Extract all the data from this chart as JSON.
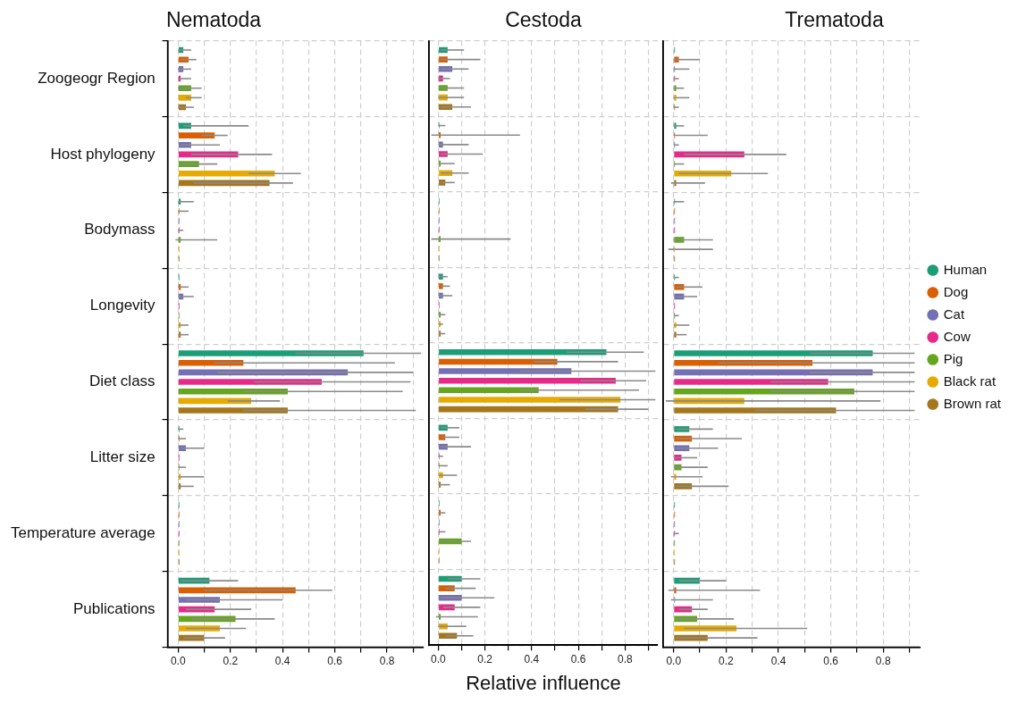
{
  "chart_data": [
    {
      "type": "bar",
      "orientation": "horizontal",
      "title": "Nematoda",
      "categories": [
        "Zoogeogr Region",
        "Host phylogeny",
        "Bodymass",
        "Longevity",
        "Diet class",
        "Litter size",
        "Temperature average",
        "Publications"
      ],
      "xlim": [
        -0.04,
        0.94
      ],
      "xticks": [
        {
          "value": 0,
          "label": "0.0"
        },
        {
          "value": 0.1,
          "label": null
        },
        0.2,
        {
          "value": 0.3,
          "label": null
        },
        0.4,
        {
          "value": 0.5,
          "label": null
        },
        0.6,
        {
          "value": 0.7,
          "label": null
        },
        0.8,
        {
          "value": 0.9,
          "label": null
        }
      ],
      "grid": true,
      "legend": false,
      "series": [
        {
          "color": "#1b9e77",
          "values": [
            0.02,
            0.05,
            0.01,
            0.005,
            0.71,
            0.005,
            0.005,
            0.12
          ],
          "errors": [
            [
              0,
              0.05
            ],
            [
              0.02,
              0.27
            ],
            [
              0,
              0.06
            ],
            null,
            [
              0.45,
              0.93
            ],
            [
              0,
              0.02
            ],
            null,
            [
              0.01,
              0.23
            ]
          ]
        },
        {
          "color": "#d95f02",
          "values": [
            0.04,
            0.14,
            0.005,
            0.01,
            0.25,
            0.005,
            0.005,
            0.45
          ],
          "errors": [
            [
              0.01,
              0.07
            ],
            [
              0.09,
              0.19
            ],
            [
              0,
              0.04
            ],
            [
              0,
              0.04
            ],
            [
              0.14,
              0.83
            ],
            [
              0,
              0.03
            ],
            null,
            [
              0.1,
              0.59
            ]
          ]
        },
        {
          "color": "#7570b3",
          "values": [
            0.02,
            0.05,
            0.005,
            0.02,
            0.65,
            0.03,
            0.005,
            0.16
          ],
          "errors": [
            [
              0,
              0.05
            ],
            [
              0.01,
              0.16
            ],
            null,
            [
              0,
              0.06
            ],
            [
              0.15,
              0.9
            ],
            [
              0.01,
              0.1
            ],
            null,
            [
              0.03,
              0.4
            ]
          ]
        },
        {
          "color": "#e7298a",
          "values": [
            0.01,
            0.23,
            0.005,
            0.005,
            0.55,
            0.005,
            0.005,
            0.14
          ],
          "errors": [
            [
              0,
              0.05
            ],
            [
              0.05,
              0.36
            ],
            [
              0,
              0.02
            ],
            null,
            [
              0.29,
              0.89
            ],
            null,
            null,
            [
              0.03,
              0.28
            ]
          ]
        },
        {
          "color": "#66a61e",
          "values": [
            0.05,
            0.08,
            0.01,
            0.005,
            0.42,
            0.005,
            0.005,
            0.22
          ],
          "errors": [
            [
              0,
              0.09
            ],
            [
              0.01,
              0.15
            ],
            [
              -0.01,
              0.15
            ],
            null,
            [
              0.25,
              0.86
            ],
            [
              0,
              0.03
            ],
            null,
            [
              0.05,
              0.37
            ]
          ]
        },
        {
          "color": "#e6ab02",
          "values": [
            0.05,
            0.37,
            0.005,
            0.01,
            0.28,
            0.01,
            0.005,
            0.16
          ],
          "errors": [
            [
              0.03,
              0.09
            ],
            [
              0.27,
              0.47
            ],
            null,
            [
              0,
              0.04
            ],
            [
              0.19,
              0.39
            ],
            [
              0,
              0.1
            ],
            null,
            [
              0.03,
              0.26
            ]
          ]
        },
        {
          "color": "#a6761d",
          "values": [
            0.03,
            0.35,
            0.005,
            0.01,
            0.42,
            0.01,
            0.005,
            0.1
          ],
          "errors": [
            [
              0,
              0.06
            ],
            [
              0.06,
              0.44
            ],
            null,
            [
              0,
              0.04
            ],
            [
              0.25,
              0.91
            ],
            [
              0,
              0.06
            ],
            null,
            [
              0.02,
              0.18
            ]
          ]
        }
      ]
    },
    {
      "type": "bar",
      "orientation": "horizontal",
      "title": "Cestoda",
      "xlabel": "Relative influence",
      "tick_labels": "x",
      "categories": [
        null,
        null,
        null,
        null,
        null,
        null,
        null,
        null
      ],
      "xlim": [
        -0.04,
        0.94
      ],
      "xticks": [
        {
          "value": 0,
          "label": "0.0"
        },
        {
          "value": 0.1,
          "label": null
        },
        0.2,
        {
          "value": 0.3,
          "label": null
        },
        0.4,
        {
          "value": 0.5,
          "label": null
        },
        0.6,
        {
          "value": 0.7,
          "label": null
        },
        0.8,
        {
          "value": 0.9,
          "label": null
        }
      ],
      "grid": true,
      "legend": false,
      "series": [
        {
          "color": "#1b9e77",
          "values": [
            0.04,
            0.005,
            0.005,
            0.02,
            0.72,
            0.04,
            0.005,
            0.1
          ],
          "errors": [
            [
              0.01,
              0.11
            ],
            [
              0,
              0.03
            ],
            null,
            [
              0,
              0.04
            ],
            [
              0.55,
              0.88
            ],
            [
              0.01,
              0.09
            ],
            null,
            [
              0.04,
              0.18
            ]
          ]
        },
        {
          "color": "#d95f02",
          "values": [
            0.04,
            0.01,
            0.005,
            0.02,
            0.51,
            0.03,
            0.01,
            0.07
          ],
          "errors": [
            [
              0.01,
              0.18
            ],
            [
              -0.03,
              0.35
            ],
            null,
            [
              0.01,
              0.05
            ],
            [
              0.41,
              0.77
            ],
            [
              0.01,
              0.09
            ],
            [
              0,
              0.03
            ],
            [
              0.03,
              0.16
            ]
          ]
        },
        {
          "color": "#7570b3",
          "values": [
            0.06,
            0.02,
            0.005,
            0.02,
            0.57,
            0.04,
            0.005,
            0.1
          ],
          "errors": [
            [
              0.01,
              0.13
            ],
            [
              0,
              0.13
            ],
            null,
            [
              0,
              0.06
            ],
            [
              0.35,
              0.93
            ],
            [
              0.01,
              0.14
            ],
            null,
            [
              0.01,
              0.24
            ]
          ]
        },
        {
          "color": "#e7298a",
          "values": [
            0.02,
            0.04,
            0.005,
            0.005,
            0.76,
            0.005,
            0.005,
            0.07
          ],
          "errors": [
            [
              0,
              0.05
            ],
            [
              0.01,
              0.19
            ],
            null,
            null,
            [
              0.61,
              0.89
            ],
            [
              0,
              0.02
            ],
            [
              0,
              0.03
            ],
            [
              0.02,
              0.18
            ]
          ]
        },
        {
          "color": "#66a61e",
          "values": [
            0.04,
            0.01,
            0.01,
            0.01,
            0.43,
            0.005,
            0.1,
            0.01
          ],
          "errors": [
            [
              0.01,
              0.11
            ],
            [
              0,
              0.07
            ],
            [
              -0.03,
              0.31
            ],
            [
              0,
              0.03
            ],
            [
              0.35,
              0.86
            ],
            [
              0,
              0.04
            ],
            [
              0.01,
              0.14
            ],
            [
              -0.01,
              0.17
            ]
          ]
        },
        {
          "color": "#e6ab02",
          "values": [
            0.04,
            0.06,
            0.005,
            0.01,
            0.78,
            0.02,
            0.005,
            0.04
          ],
          "errors": [
            [
              0,
              0.11
            ],
            [
              0.01,
              0.13
            ],
            null,
            [
              0,
              0.02
            ],
            [
              0.52,
              0.93
            ],
            [
              0,
              0.08
            ],
            null,
            [
              0,
              0.12
            ]
          ]
        },
        {
          "color": "#a6761d",
          "values": [
            0.06,
            0.03,
            0.005,
            0.01,
            0.77,
            0.01,
            0.005,
            0.08
          ],
          "errors": [
            [
              0.01,
              0.14
            ],
            [
              0.01,
              0.07
            ],
            null,
            [
              0,
              0.03
            ],
            [
              0.63,
              0.9
            ],
            [
              0,
              0.05
            ],
            null,
            [
              0.03,
              0.15
            ]
          ]
        }
      ]
    },
    {
      "type": "bar",
      "orientation": "horizontal",
      "title": "Trematoda",
      "tick_labels": "x",
      "categories": [
        null,
        null,
        null,
        null,
        null,
        null,
        null,
        null
      ],
      "xlim": [
        -0.04,
        0.94
      ],
      "xticks": [
        {
          "value": 0,
          "label": "0.0"
        },
        {
          "value": 0.1,
          "label": null
        },
        0.2,
        {
          "value": 0.3,
          "label": null
        },
        0.4,
        {
          "value": 0.5,
          "label": null
        },
        0.6,
        {
          "value": 0.7,
          "label": null
        },
        0.8,
        {
          "value": 0.9,
          "label": null
        }
      ],
      "grid": true,
      "legend": "right",
      "series": [
        {
          "name": "Human",
          "color": "#1b9e77",
          "values": [
            0.005,
            0.01,
            0.005,
            0.005,
            0.76,
            0.06,
            0.005,
            0.1
          ],
          "errors": [
            null,
            [
              0,
              0.04
            ],
            [
              0,
              0.04
            ],
            [
              0,
              0.02
            ],
            [
              0.52,
              0.92
            ],
            [
              0.01,
              0.15
            ],
            null,
            [
              0.02,
              0.2
            ]
          ]
        },
        {
          "name": "Dog",
          "color": "#d95f02",
          "values": [
            0.02,
            0.005,
            0.005,
            0.04,
            0.53,
            0.07,
            0.005,
            0.01
          ],
          "errors": [
            [
              0,
              0.1
            ],
            [
              0,
              0.13
            ],
            null,
            [
              0.01,
              0.11
            ],
            [
              0.17,
              0.92
            ],
            [
              0.01,
              0.26
            ],
            null,
            [
              -0.02,
              0.33
            ]
          ]
        },
        {
          "name": "Cat",
          "color": "#7570b3",
          "values": [
            0.005,
            0.005,
            0.005,
            0.04,
            0.76,
            0.06,
            0.005,
            0.005
          ],
          "errors": [
            [
              0,
              0.06
            ],
            [
              0,
              0.02
            ],
            null,
            [
              0.01,
              0.09
            ],
            [
              0.52,
              0.92
            ],
            [
              0.01,
              0.17
            ],
            null,
            [
              -0.01,
              0.15
            ]
          ]
        },
        {
          "name": "Cow",
          "color": "#e7298a",
          "values": [
            0.005,
            0.27,
            0.005,
            0.005,
            0.59,
            0.03,
            0.005,
            0.07
          ],
          "errors": [
            [
              0,
              0.02
            ],
            [
              0.04,
              0.43
            ],
            null,
            null,
            [
              0.37,
              0.92
            ],
            [
              0,
              0.09
            ],
            [
              0,
              0.02
            ],
            [
              0.02,
              0.13
            ]
          ]
        },
        {
          "name": "Pig",
          "color": "#66a61e",
          "values": [
            0.01,
            0.005,
            0.04,
            0.005,
            0.69,
            0.03,
            0.005,
            0.09
          ],
          "errors": [
            [
              0,
              0.04
            ],
            [
              0,
              0.04
            ],
            [
              0,
              0.15
            ],
            [
              0,
              0.02
            ],
            [
              0.37,
              0.92
            ],
            [
              0,
              0.13
            ],
            null,
            [
              0.01,
              0.23
            ]
          ]
        },
        {
          "name": "Black rat",
          "color": "#e6ab02",
          "values": [
            0.01,
            0.22,
            0.005,
            0.01,
            0.27,
            0.01,
            0.005,
            0.24
          ],
          "errors": [
            [
              0,
              0.06
            ],
            [
              0.02,
              0.36
            ],
            [
              -0.02,
              0.15
            ],
            [
              0,
              0.06
            ],
            [
              -0.03,
              0.79
            ],
            [
              -0.01,
              0.11
            ],
            null,
            [
              0.04,
              0.51
            ]
          ]
        },
        {
          "name": "Brown rat",
          "color": "#a6761d",
          "values": [
            0.005,
            0.01,
            0.005,
            0.01,
            0.62,
            0.07,
            0.005,
            0.13
          ],
          "errors": [
            [
              0,
              0.02
            ],
            [
              -0.01,
              0.12
            ],
            null,
            [
              0,
              0.05
            ],
            [
              0.31,
              0.92
            ],
            [
              0.01,
              0.21
            ],
            null,
            [
              0.01,
              0.32
            ]
          ]
        }
      ]
    }
  ]
}
